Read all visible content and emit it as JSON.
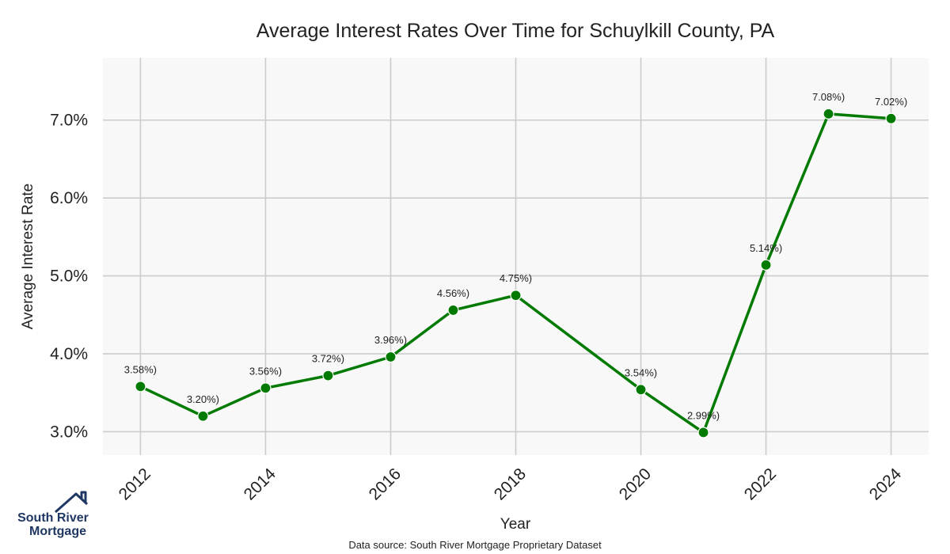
{
  "chart_data": {
    "type": "line",
    "title": "Average Interest Rates Over Time for Schuylkill County, PA",
    "xlabel": "Year",
    "ylabel": "Average Interest Rate",
    "x": [
      2012,
      2013,
      2014,
      2015,
      2016,
      2017,
      2018,
      2020,
      2021,
      2022,
      2023,
      2024
    ],
    "values": [
      3.58,
      3.2,
      3.56,
      3.72,
      3.96,
      4.56,
      4.75,
      3.54,
      2.99,
      5.14,
      7.08,
      7.02
    ],
    "data_labels": [
      "3.58%)",
      "3.20%)",
      "3.56%)",
      "3.72%)",
      "3.96%)",
      "4.56%)",
      "4.75%)",
      "3.54%)",
      "2.99%)",
      "5.14%)",
      "7.08%)",
      "7.02%)"
    ],
    "xticks": [
      "2012",
      "2014",
      "2016",
      "2018",
      "2020",
      "2022",
      "2024"
    ],
    "yticks": [
      "3.0%",
      "4.0%",
      "5.0%",
      "6.0%",
      "7.0%"
    ],
    "ylim": [
      2.7,
      7.8
    ],
    "xlim": [
      2011.4,
      2024.6
    ],
    "grid": true,
    "line_color": "#007a00",
    "plot_background": "#f8f8f8",
    "grid_color": "#cccccc"
  },
  "footer": {
    "source": "Data source: South River Mortgage Proprietary Dataset"
  },
  "logo": {
    "line1": "South River",
    "line2": "Mortgage",
    "color": "#1f3763"
  }
}
